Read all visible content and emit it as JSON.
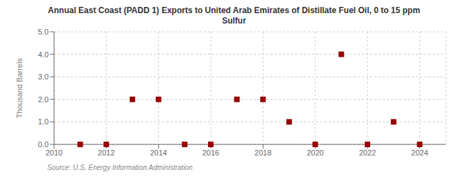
{
  "chart_data": {
    "type": "scatter",
    "title": "Annual East Coast (PADD 1) Exports to United Arab Emirates of Distillate Fuel Oil, 0 to 15 ppm\nSulfur",
    "y_label": "Thousand Barrels",
    "annotations": [
      "Source: U.S. Energy Information Administration"
    ],
    "x": [
      2011,
      2012,
      2013,
      2014,
      2015,
      2016,
      2017,
      2018,
      2019,
      2020,
      2021,
      2022,
      2023,
      2024
    ],
    "values": [
      0,
      0,
      2,
      2,
      0,
      0,
      2,
      2,
      1,
      0,
      4,
      0,
      1,
      0
    ],
    "color": "#990000",
    "marker": "square",
    "xlim": [
      2010,
      2025
    ],
    "xticks": [
      2010,
      2012,
      2014,
      2016,
      2018,
      2020,
      2022,
      2024
    ],
    "ylim": [
      0,
      5
    ],
    "yticks": [
      {
        "value": 0,
        "label": "0.0"
      },
      {
        "value": 1,
        "label": "1.0"
      },
      {
        "value": 2,
        "label": "2.0"
      },
      {
        "value": 3,
        "label": "3.0"
      },
      {
        "value": 4,
        "label": "4.0"
      },
      {
        "value": 5,
        "label": "5.0"
      }
    ],
    "grid": true
  }
}
